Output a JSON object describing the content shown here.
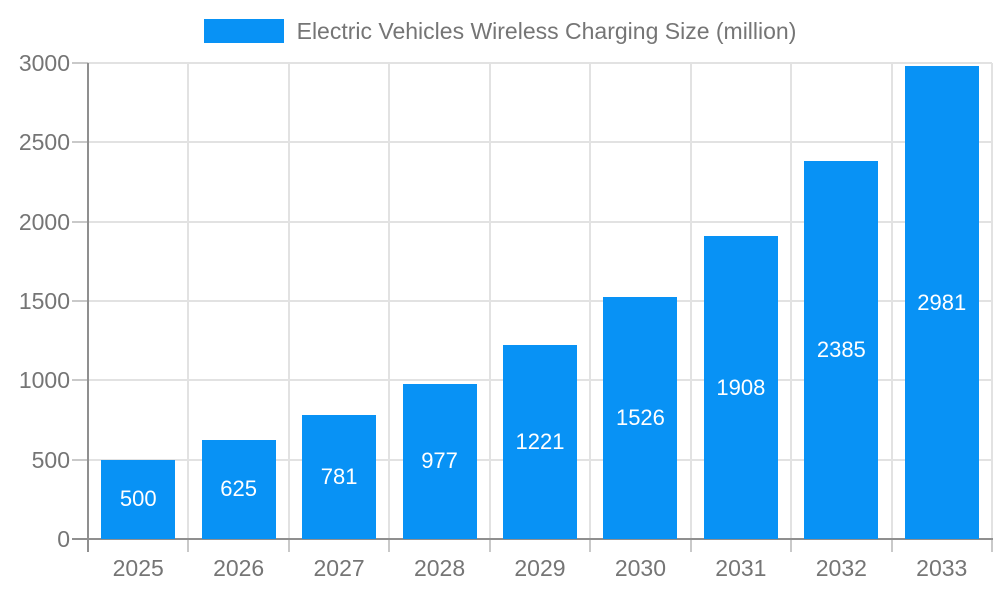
{
  "chart_data": {
    "type": "bar",
    "title": "",
    "legend": {
      "position": "top",
      "entries": [
        {
          "label": "Electric Vehicles Wireless Charging Size (million)",
          "color": "#0892f5"
        }
      ]
    },
    "categories": [
      "2025",
      "2026",
      "2027",
      "2028",
      "2029",
      "2030",
      "2031",
      "2032",
      "2033"
    ],
    "series": [
      {
        "name": "Electric Vehicles Wireless Charging Size (million)",
        "values": [
          500,
          625,
          781,
          977,
          1221,
          1526,
          1908,
          2385,
          2981
        ]
      }
    ],
    "xlabel": "",
    "ylabel": "",
    "ylim": [
      0,
      3000
    ],
    "yticks": [
      0,
      500,
      1000,
      1500,
      2000,
      2500,
      3000
    ],
    "grid": true,
    "bar_labels_inside": true
  },
  "colors": {
    "bar": "#0892f5",
    "bar_label_text": "#ffffff",
    "axis_text": "#757575",
    "legend_text": "#757575",
    "gridline": "#e2e2e2",
    "axis_line": "#8f8f8f",
    "tick": "#c9c9c9",
    "background": "#ffffff"
  }
}
